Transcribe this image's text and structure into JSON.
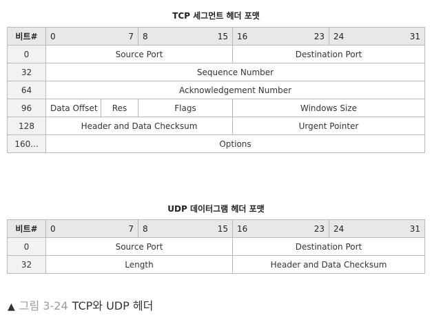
{
  "tcp": {
    "title": "TCP 세그먼트 헤더 포맷",
    "header": {
      "corner": "비트#",
      "col1_start": "0",
      "col1_end": "7",
      "col2_start": "8",
      "col2_end": "15",
      "col3_start": "16",
      "col3_end": "23",
      "col4_start": "24",
      "col4_end": "31"
    },
    "rows": {
      "r0": {
        "label": "0",
        "source_port": "Source Port",
        "destination_port": "Destination Port"
      },
      "r32": {
        "label": "32",
        "sequence_number": "Sequence Number"
      },
      "r64": {
        "label": "64",
        "ack_number": "Acknowledgement Number"
      },
      "r96": {
        "label": "96",
        "data_offset": "Data Offset",
        "res": "Res",
        "flags": "Flags",
        "windows_size": "Windows Size"
      },
      "r128": {
        "label": "128",
        "checksum": "Header and Data Checksum",
        "urgent_pointer": "Urgent Pointer"
      },
      "r160": {
        "label": "160...",
        "options": "Options"
      }
    }
  },
  "udp": {
    "title": "UDP 데이터그램 헤더 포맷",
    "header": {
      "corner": "비트#",
      "col1_start": "0",
      "col1_end": "7",
      "col2_start": "8",
      "col2_end": "15",
      "col3_start": "16",
      "col3_end": "23",
      "col4_start": "24",
      "col4_end": "31"
    },
    "rows": {
      "r0": {
        "label": "0",
        "source_port": "Source Port",
        "destination_port": "Destination Port"
      },
      "r32": {
        "label": "32",
        "length": "Length",
        "checksum": "Header and Data Checksum"
      }
    }
  },
  "caption": {
    "marker": "▲",
    "prefix": "그림 3-24",
    "text": "TCP와 UDP 헤더"
  }
}
